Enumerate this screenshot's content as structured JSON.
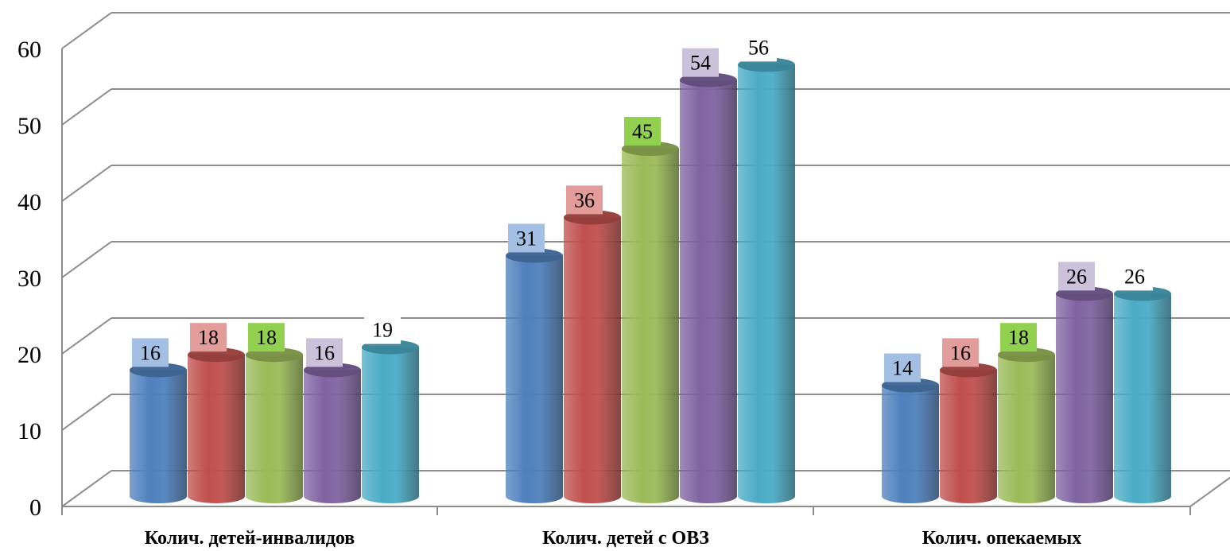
{
  "chart_data": {
    "type": "bar",
    "categories": [
      "Колич. детей-инвалидов",
      "Колич. детей с ОВЗ",
      "Колич. опекаемых"
    ],
    "series": [
      {
        "color": "#4f81bd",
        "label_bg": "#a3bfe3",
        "values": [
          16,
          31,
          14
        ]
      },
      {
        "color": "#c0504d",
        "label_bg": "#e29c9a",
        "values": [
          18,
          36,
          16
        ]
      },
      {
        "color": "#9bbb59",
        "label_bg": "#92d050",
        "values": [
          18,
          45,
          18
        ]
      },
      {
        "color": "#8064a2",
        "label_bg": "#ccc1da",
        "values": [
          16,
          54,
          26
        ]
      },
      {
        "color": "#4bacc6",
        "label_bg": "#ffffff",
        "values": [
          19,
          56,
          26
        ]
      }
    ],
    "ylim": [
      0,
      60
    ],
    "yticks": [
      0,
      10,
      20,
      30,
      40,
      50,
      60
    ],
    "grid": true,
    "legend": "none"
  }
}
